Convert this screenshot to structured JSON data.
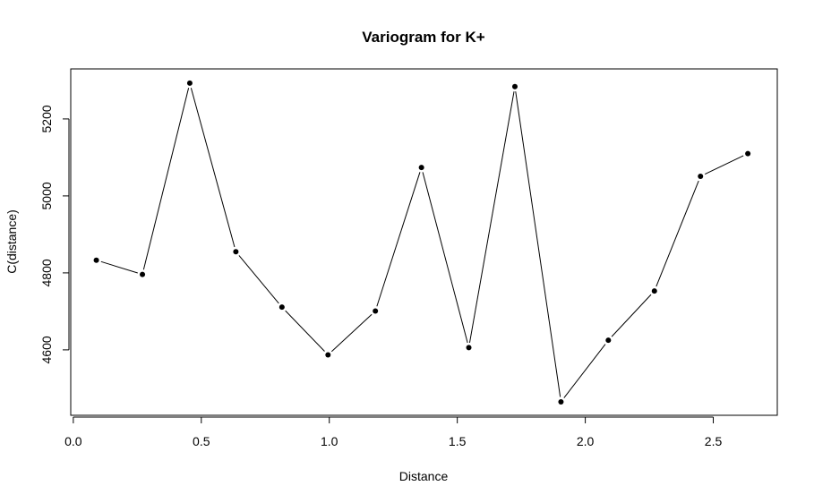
{
  "chart_data": {
    "type": "line",
    "title": "Variogram for K+",
    "xlabel": "Distance",
    "ylabel": "C(distance)",
    "xlim": [
      -0.01,
      2.75
    ],
    "ylim": [
      4430,
      5330
    ],
    "x_ticks": [
      0.0,
      0.5,
      1.0,
      1.5,
      2.0,
      2.5
    ],
    "x_tick_labels": [
      "0.0",
      "0.5",
      "1.0",
      "1.5",
      "2.0",
      "2.5"
    ],
    "y_ticks": [
      4600,
      4800,
      5000,
      5200
    ],
    "y_tick_labels": [
      "4600",
      "4800",
      "5000",
      "5200"
    ],
    "grid": false,
    "series": [
      {
        "x": [
          0.09,
          0.27,
          0.455,
          0.635,
          0.815,
          0.995,
          1.18,
          1.36,
          1.545,
          1.725,
          1.905,
          2.09,
          2.27,
          2.45,
          2.635
        ],
        "y": [
          4833,
          4796,
          5293,
          4855,
          4711,
          4587,
          4701,
          5074,
          4606,
          5284,
          4465,
          4625,
          4753,
          5051,
          5110
        ]
      }
    ],
    "colors": {
      "line": "#000000",
      "point": "#000000",
      "frame": "#000000"
    }
  }
}
